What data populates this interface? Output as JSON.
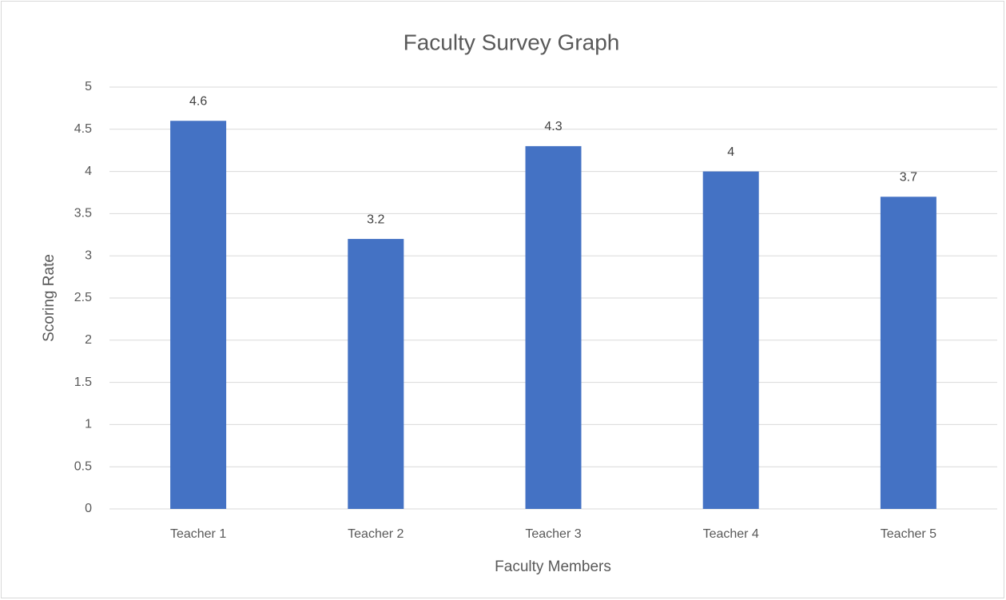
{
  "chart_data": {
    "type": "bar",
    "title": "Faculty Survey Graph",
    "x_label": "Faculty Members",
    "y_label": "Scoring Rate",
    "categories": [
      "Teacher 1",
      "Teacher 2",
      "Teacher 3",
      "Teacher 4",
      "Teacher 5"
    ],
    "values": [
      4.6,
      3.2,
      4.3,
      4,
      3.7
    ],
    "color": "#4472c4",
    "ylim": [
      0,
      5
    ],
    "yticks": [
      0,
      0.5,
      1,
      1.5,
      2,
      2.5,
      3,
      3.5,
      4,
      4.5,
      5
    ],
    "grid": true
  }
}
